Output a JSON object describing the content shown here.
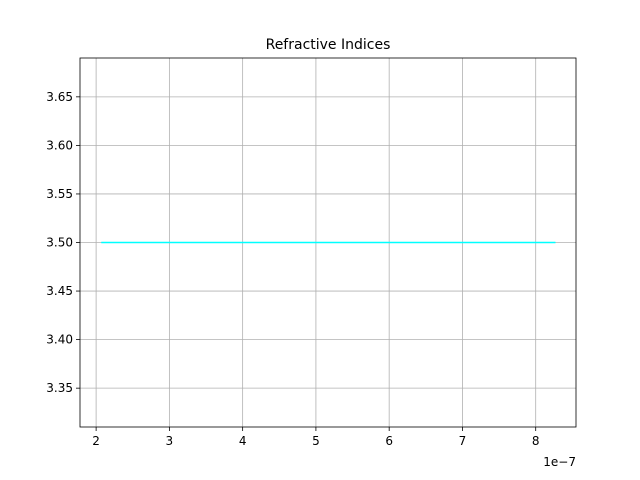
{
  "chart_data": {
    "type": "line",
    "title": "Refractive Indices",
    "xlabel": "",
    "ylabel": "",
    "x_offset_label": "1e−7",
    "xlim": [
      1.78e-07,
      8.55e-07
    ],
    "ylim": [
      3.31,
      3.69
    ],
    "x_ticks": [
      {
        "value": 2e-07,
        "label": "2"
      },
      {
        "value": 3e-07,
        "label": "3"
      },
      {
        "value": 4e-07,
        "label": "4"
      },
      {
        "value": 5e-07,
        "label": "5"
      },
      {
        "value": 6e-07,
        "label": "6"
      },
      {
        "value": 7e-07,
        "label": "7"
      },
      {
        "value": 8e-07,
        "label": "8"
      }
    ],
    "y_ticks": [
      {
        "value": 3.35,
        "label": "3.35"
      },
      {
        "value": 3.4,
        "label": "3.40"
      },
      {
        "value": 3.45,
        "label": "3.45"
      },
      {
        "value": 3.5,
        "label": "3.50"
      },
      {
        "value": 3.55,
        "label": "3.55"
      },
      {
        "value": 3.6,
        "label": "3.60"
      },
      {
        "value": 3.65,
        "label": "3.65"
      }
    ],
    "grid": true,
    "series": [
      {
        "color": "#00ffff",
        "x": [
          2.07e-07,
          8.27e-07
        ],
        "y": [
          3.5,
          3.5
        ]
      }
    ]
  }
}
